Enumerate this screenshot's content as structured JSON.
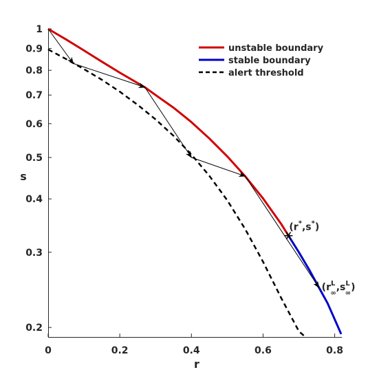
{
  "chart_data": {
    "type": "line",
    "xlabel": "r",
    "ylabel": "s",
    "y_scale": "log",
    "xlim": [
      0,
      0.82
    ],
    "ylim": [
      0.19,
      1.0
    ],
    "x_ticks": [
      "0",
      "0.2",
      "0.4",
      "0.6",
      "0.8"
    ],
    "x_tick_values": [
      0,
      0.2,
      0.4,
      0.6,
      0.8
    ],
    "y_ticks": [
      "1",
      "0.9",
      "0.8",
      "0.7",
      "0.6",
      "0.5",
      "0.4",
      "0.3",
      "0.2"
    ],
    "y_tick_values": [
      1.0,
      0.9,
      0.8,
      0.7,
      0.6,
      0.5,
      0.4,
      0.3,
      0.2
    ],
    "grid": false,
    "legend_position": "top-right",
    "series": [
      {
        "name": "unstable boundary",
        "color": "#d00000",
        "style": "solid",
        "x": [
          0.0,
          0.05,
          0.1,
          0.15,
          0.2,
          0.27,
          0.3,
          0.35,
          0.4,
          0.45,
          0.5,
          0.55,
          0.6,
          0.65,
          0.671
        ],
        "y": [
          1.0,
          0.945,
          0.89,
          0.838,
          0.79,
          0.73,
          0.7,
          0.654,
          0.605,
          0.554,
          0.503,
          0.452,
          0.401,
          0.35,
          0.328
        ]
      },
      {
        "name": "stable boundary",
        "color": "#0000cc",
        "style": "solid",
        "x": [
          0.671,
          0.7,
          0.73,
          0.756,
          0.78,
          0.8,
          0.818
        ],
        "y": [
          0.328,
          0.3,
          0.272,
          0.248,
          0.228,
          0.209,
          0.193
        ]
      },
      {
        "name": "alert threshold",
        "color": "#000000",
        "style": "dashed",
        "x": [
          0.0,
          0.05,
          0.1,
          0.15,
          0.2,
          0.25,
          0.3,
          0.35,
          0.4,
          0.45,
          0.5,
          0.55,
          0.6,
          0.65,
          0.7,
          0.718
        ],
        "y": [
          0.895,
          0.85,
          0.805,
          0.76,
          0.713,
          0.664,
          0.614,
          0.562,
          0.508,
          0.453,
          0.397,
          0.34,
          0.285,
          0.235,
          0.196,
          0.19
        ]
      }
    ],
    "trajectory": {
      "color": "#000000",
      "points": [
        [
          0.0,
          1.0
        ],
        [
          0.07,
          0.83
        ],
        [
          0.27,
          0.73
        ],
        [
          0.4,
          0.5
        ],
        [
          0.55,
          0.452
        ],
        [
          0.756,
          0.248
        ]
      ]
    },
    "markers": [
      {
        "label": "(r*,s*)",
        "x": 0.671,
        "y": 0.328,
        "symbol": "asterisk",
        "color": "#d00000"
      }
    ],
    "annotations": [
      {
        "base": "(r",
        "sup1": "*",
        "mid": ",s",
        "sup2": "*",
        "end": ")",
        "x": 0.671,
        "y": 0.328
      },
      {
        "base": "(r",
        "sup1": "L",
        "sub1": "∞",
        "mid": ",s",
        "sup2": "L",
        "sub2": "∞",
        "end": ")",
        "x": 0.756,
        "y": 0.248
      }
    ]
  }
}
